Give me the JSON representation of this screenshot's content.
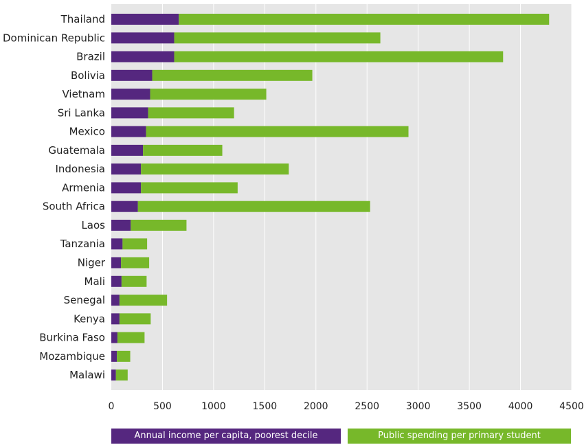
{
  "colors": {
    "plot_background": "#e6e6e6",
    "income": "#55277f",
    "spending": "#77b82a"
  },
  "chart_data": {
    "type": "bar",
    "orientation": "horizontal",
    "stacked": true,
    "categories": [
      "Thailand",
      "Dominican Republic",
      "Brazil",
      "Bolivia",
      "Vietnam",
      "Sri Lanka",
      "Mexico",
      "Guatemala",
      "Indonesia",
      "Armenia",
      "South Africa",
      "Laos",
      "Tanzania",
      "Niger",
      "Mali",
      "Senegal",
      "Kenya",
      "Burkina Faso",
      "Mozambique",
      "Malawi"
    ],
    "series": [
      {
        "name": "Annual income per capita, poorest decile",
        "color": "#55277f",
        "values": [
          660,
          615,
          615,
          400,
          380,
          360,
          340,
          310,
          290,
          290,
          260,
          190,
          110,
          95,
          100,
          80,
          80,
          60,
          55,
          45
        ]
      },
      {
        "name": "Public spending per primary student",
        "color": "#77b82a",
        "values": [
          3620,
          2015,
          3215,
          1565,
          1135,
          840,
          2565,
          775,
          1445,
          945,
          2270,
          545,
          240,
          275,
          245,
          465,
          305,
          265,
          130,
          115
        ]
      }
    ],
    "xlim": [
      0,
      4500
    ],
    "xticks": [
      0,
      500,
      1000,
      1500,
      2000,
      2500,
      3000,
      3500,
      4000,
      4500
    ],
    "grid": true,
    "legend_position": "bottom",
    "title": "",
    "xlabel": "",
    "ylabel": ""
  }
}
